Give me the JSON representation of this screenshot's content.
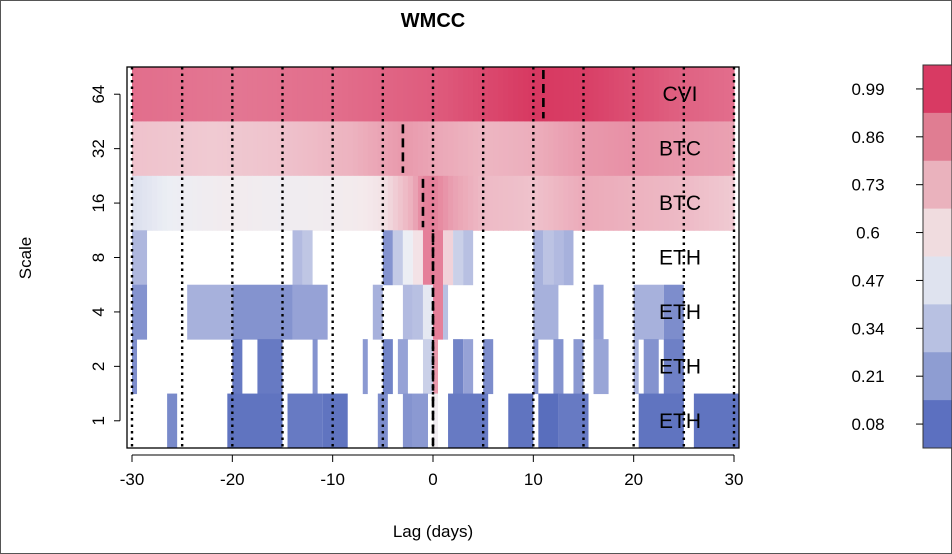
{
  "chart_data": {
    "type": "heatmap",
    "title": "WMCC",
    "xlabel": "Lag (days)",
    "ylabel": "Scale",
    "xlim": [
      -30,
      30
    ],
    "x_ticks": [
      "-30",
      "-20",
      "-10",
      "0",
      "10",
      "20",
      "30"
    ],
    "x_tick_values": [
      -30,
      -20,
      -10,
      0,
      10,
      20,
      30
    ],
    "vline_lags": [
      -30,
      -25,
      -20,
      -15,
      -10,
      -5,
      0,
      5,
      10,
      15,
      20,
      25,
      30
    ],
    "scales": [
      {
        "label": "64",
        "leader": "CVI",
        "peak_lag": 11
      },
      {
        "label": "32",
        "leader": "BTC",
        "peak_lag": -3
      },
      {
        "label": "16",
        "leader": "BTC",
        "peak_lag": -1
      },
      {
        "label": "8",
        "leader": "ETH",
        "peak_lag": 0
      },
      {
        "label": "4",
        "leader": "ETH",
        "peak_lag": 0
      },
      {
        "label": "2",
        "leader": "ETH",
        "peak_lag": 0
      },
      {
        "label": "1",
        "leader": "ETH",
        "peak_lag": 0
      }
    ],
    "rows": {
      "64": [
        [
          -30,
          0.9
        ],
        [
          -20,
          0.88
        ],
        [
          -10,
          0.9
        ],
        [
          0,
          0.93
        ],
        [
          5,
          0.96
        ],
        [
          10,
          0.99
        ],
        [
          15,
          0.98
        ],
        [
          20,
          0.95
        ],
        [
          25,
          0.92
        ],
        [
          30,
          0.9
        ]
      ],
      "32": [
        [
          -30,
          0.7
        ],
        [
          -22,
          0.68
        ],
        [
          -15,
          0.7
        ],
        [
          -8,
          0.74
        ],
        [
          -3,
          0.8
        ],
        [
          0,
          0.77
        ],
        [
          5,
          0.73
        ],
        [
          10,
          0.75
        ],
        [
          15,
          0.8
        ],
        [
          20,
          0.82
        ],
        [
          25,
          0.8
        ],
        [
          30,
          0.78
        ]
      ],
      "16": [
        [
          -30,
          0.45
        ],
        [
          -25,
          0.52
        ],
        [
          -20,
          0.58
        ],
        [
          -15,
          0.54
        ],
        [
          -10,
          0.57
        ],
        [
          -5,
          0.62
        ],
        [
          -2,
          0.75
        ],
        [
          -1,
          0.85
        ],
        [
          0,
          0.86
        ],
        [
          2,
          0.78
        ],
        [
          5,
          0.72
        ],
        [
          10,
          0.7
        ],
        [
          15,
          0.76
        ],
        [
          20,
          0.74
        ],
        [
          25,
          0.72
        ],
        [
          30,
          0.68
        ]
      ]
    },
    "blocks": {
      "8": [
        [
          -30,
          -28.5,
          0.32
        ],
        [
          -14,
          -13,
          0.33
        ],
        [
          -13,
          -12,
          0.37
        ],
        [
          -5,
          -4,
          0.2
        ],
        [
          -4,
          -3,
          0.38
        ],
        [
          -3,
          -2,
          0.5
        ],
        [
          -2,
          -1,
          0.62
        ],
        [
          -1,
          1,
          0.86
        ],
        [
          1,
          2,
          0.66
        ],
        [
          2,
          3,
          0.4
        ],
        [
          3,
          4,
          0.35
        ],
        [
          10,
          11,
          0.3
        ],
        [
          11,
          12,
          0.36
        ],
        [
          12,
          13,
          0.33
        ],
        [
          13,
          14,
          0.3
        ]
      ],
      "4": [
        [
          -30,
          -28.5,
          0.2
        ],
        [
          -24.5,
          -20,
          0.3
        ],
        [
          -20,
          -14,
          0.2
        ],
        [
          -14,
          -10.5,
          0.25
        ],
        [
          -6,
          -5,
          0.3
        ],
        [
          -3,
          -2,
          0.33
        ],
        [
          -2,
          -1,
          0.35
        ],
        [
          -1,
          0,
          0.48
        ],
        [
          0,
          1,
          0.86
        ],
        [
          1,
          1.5,
          0.35
        ],
        [
          10,
          12.5,
          0.3
        ],
        [
          16,
          17,
          0.24
        ],
        [
          20,
          23,
          0.3
        ],
        [
          23,
          25,
          0.18
        ]
      ],
      "2": [
        [
          -30,
          -29.5,
          0.18
        ],
        [
          -20,
          -19,
          0.12
        ],
        [
          -17.5,
          -15,
          0.12
        ],
        [
          -12,
          -11.5,
          0.2
        ],
        [
          -7,
          -6.5,
          0.22
        ],
        [
          -5,
          -4,
          0.15
        ],
        [
          -3.5,
          -2.5,
          0.25
        ],
        [
          -1,
          0,
          0.4
        ],
        [
          0,
          0.5,
          0.8
        ],
        [
          2,
          3,
          0.15
        ],
        [
          3,
          4,
          0.25
        ],
        [
          5,
          6,
          0.18
        ],
        [
          10,
          10.5,
          0.2
        ],
        [
          12,
          13,
          0.2
        ],
        [
          14,
          15,
          0.22
        ],
        [
          16,
          17.5,
          0.26
        ],
        [
          20,
          20.5,
          0.3
        ],
        [
          21,
          22.5,
          0.2
        ],
        [
          23,
          25,
          0.14
        ]
      ],
      "1": [
        [
          -26.5,
          -25.5,
          0.17
        ],
        [
          -20.5,
          -15,
          0.1
        ],
        [
          -14.5,
          -11,
          0.12
        ],
        [
          -11,
          -8.5,
          0.1
        ],
        [
          -5.5,
          -4.5,
          0.18
        ],
        [
          -3,
          -2,
          0.2
        ],
        [
          -2,
          -0.5,
          0.22
        ],
        [
          0,
          0.5,
          0.55
        ],
        [
          1.5,
          5.5,
          0.12
        ],
        [
          7.5,
          10,
          0.1
        ],
        [
          10.5,
          12.5,
          0.08
        ],
        [
          12.5,
          15.5,
          0.12
        ],
        [
          20.5,
          25,
          0.1
        ],
        [
          26,
          30.5,
          0.1
        ]
      ]
    },
    "colorbar": {
      "ticks": [
        "0.99",
        "0.86",
        "0.73",
        "0.6",
        "0.47",
        "0.34",
        "0.21",
        "0.08"
      ],
      "tick_values": [
        0.99,
        0.86,
        0.73,
        0.6,
        0.47,
        0.34,
        0.21,
        0.08
      ],
      "colors": [
        "#d83a63",
        "#e07d92",
        "#eab2bd",
        "#f0dcdf",
        "#dfe3ef",
        "#b8c1e2",
        "#8e9dd2",
        "#5c70c0"
      ]
    }
  }
}
